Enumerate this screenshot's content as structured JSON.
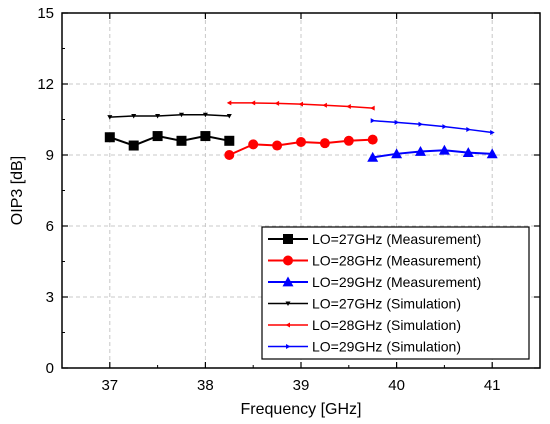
{
  "chart_data": {
    "type": "line",
    "xlabel": "Frequency [GHz]",
    "ylabel": "OIP3 [dB]",
    "xlim": [
      36.5,
      41.5
    ],
    "ylim": [
      0,
      15
    ],
    "xticks": [
      37,
      38,
      39,
      40,
      41
    ],
    "yticks": [
      0,
      3,
      6,
      9,
      12,
      15
    ],
    "grid": true,
    "legend_position": "bottom-right",
    "series": [
      {
        "name": "LO=27GHz (Measurement)",
        "color": "#000000",
        "marker": "square",
        "line_width": 2,
        "marker_size": 10,
        "x": [
          37,
          37.25,
          37.5,
          37.75,
          38,
          38.25
        ],
        "y": [
          9.75,
          9.4,
          9.8,
          9.6,
          9.8,
          9.6
        ]
      },
      {
        "name": "LO=28GHz (Measurement)",
        "color": "#ff0000",
        "marker": "circle",
        "line_width": 2,
        "marker_size": 10,
        "x": [
          38.25,
          38.5,
          38.75,
          39,
          39.25,
          39.5,
          39.75
        ],
        "y": [
          9.0,
          9.45,
          9.4,
          9.55,
          9.5,
          9.6,
          9.65
        ]
      },
      {
        "name": "LO=29GHz (Measurement)",
        "color": "#0000ff",
        "marker": "triangle-up",
        "line_width": 2,
        "marker_size": 11,
        "x": [
          39.75,
          40,
          40.25,
          40.5,
          40.75,
          41
        ],
        "y": [
          8.9,
          9.05,
          9.15,
          9.2,
          9.1,
          9.05
        ]
      },
      {
        "name": "LO=27GHz (Simulation)",
        "color": "#000000",
        "marker": "triangle-down",
        "line_width": 1.5,
        "marker_size": 5,
        "x": [
          37,
          37.25,
          37.5,
          37.75,
          38,
          38.25
        ],
        "y": [
          10.6,
          10.65,
          10.65,
          10.7,
          10.7,
          10.65
        ]
      },
      {
        "name": "LO=28GHz (Simulation)",
        "color": "#ff0000",
        "marker": "triangle-left",
        "line_width": 1.5,
        "marker_size": 5,
        "x": [
          38.25,
          38.5,
          38.75,
          39,
          39.25,
          39.5,
          39.75
        ],
        "y": [
          11.2,
          11.2,
          11.18,
          11.15,
          11.1,
          11.05,
          10.98
        ]
      },
      {
        "name": "LO=29GHz (Simulation)",
        "color": "#0000ff",
        "marker": "triangle-right",
        "line_width": 1.5,
        "marker_size": 5,
        "x": [
          39.75,
          40,
          40.25,
          40.5,
          40.75,
          41
        ],
        "y": [
          10.45,
          10.38,
          10.3,
          10.2,
          10.08,
          9.95
        ]
      }
    ]
  }
}
